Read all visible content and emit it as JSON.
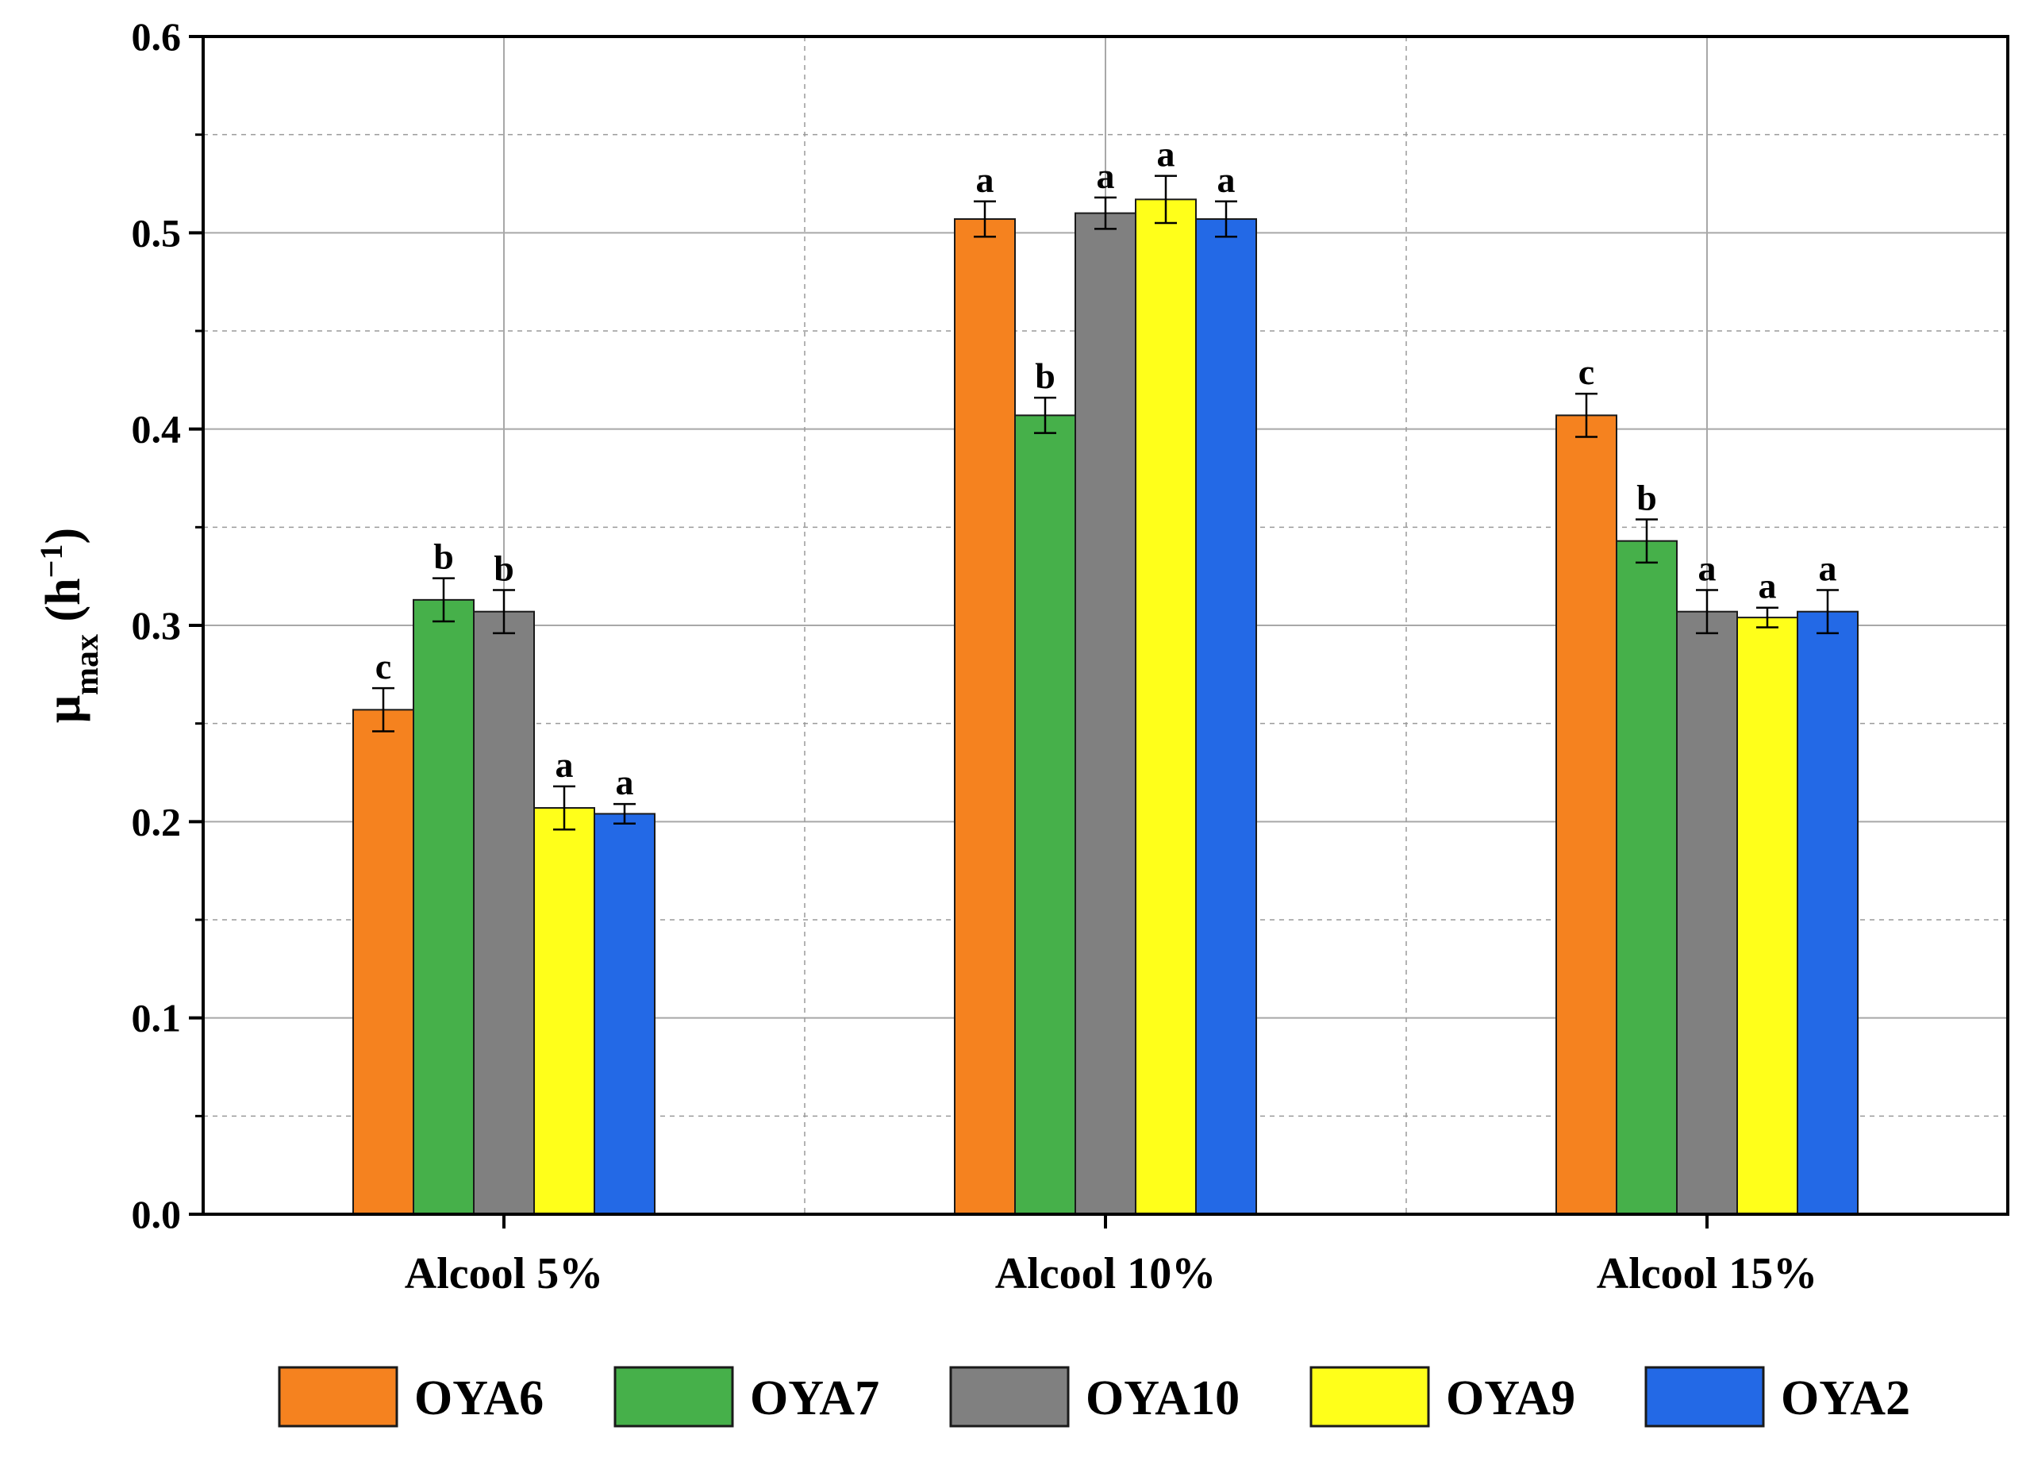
{
  "chart_data": {
    "type": "bar",
    "title": "",
    "xlabel": "",
    "ylabel": {
      "main": "μ",
      "sub": "max",
      "open": " (h",
      "sup": "−1",
      "close": ")"
    },
    "ylim": [
      0,
      0.6
    ],
    "yticks": [
      "0.0",
      "0.1",
      "0.2",
      "0.3",
      "0.4",
      "0.5",
      "0.6"
    ],
    "grid": true,
    "legend_position": "bottom",
    "categories": [
      "Alcool 5%",
      "Alcool 10%",
      "Alcool 15%"
    ],
    "series": [
      {
        "name": "OYA6",
        "color": "#F5821F",
        "values": [
          0.257,
          0.507,
          0.407
        ],
        "errors": [
          0.011,
          0.009,
          0.011
        ],
        "labels": [
          "c",
          "a",
          "c"
        ]
      },
      {
        "name": "OYA7",
        "color": "#46B04A",
        "values": [
          0.313,
          0.407,
          0.343
        ],
        "errors": [
          0.011,
          0.009,
          0.011
        ],
        "labels": [
          "b",
          "b",
          "b"
        ]
      },
      {
        "name": "OYA10",
        "color": "#808080",
        "values": [
          0.307,
          0.51,
          0.307
        ],
        "errors": [
          0.011,
          0.008,
          0.011
        ],
        "labels": [
          "b",
          "a",
          "a"
        ]
      },
      {
        "name": "OYA9",
        "color": "#FFFF1A",
        "values": [
          0.207,
          0.517,
          0.304
        ],
        "errors": [
          0.011,
          0.012,
          0.005
        ],
        "labels": [
          "a",
          "a",
          "a"
        ]
      },
      {
        "name": "OYA2",
        "color": "#2369E6",
        "values": [
          0.204,
          0.507,
          0.307
        ],
        "errors": [
          0.005,
          0.009,
          0.011
        ],
        "labels": [
          "a",
          "a",
          "a"
        ]
      }
    ]
  }
}
